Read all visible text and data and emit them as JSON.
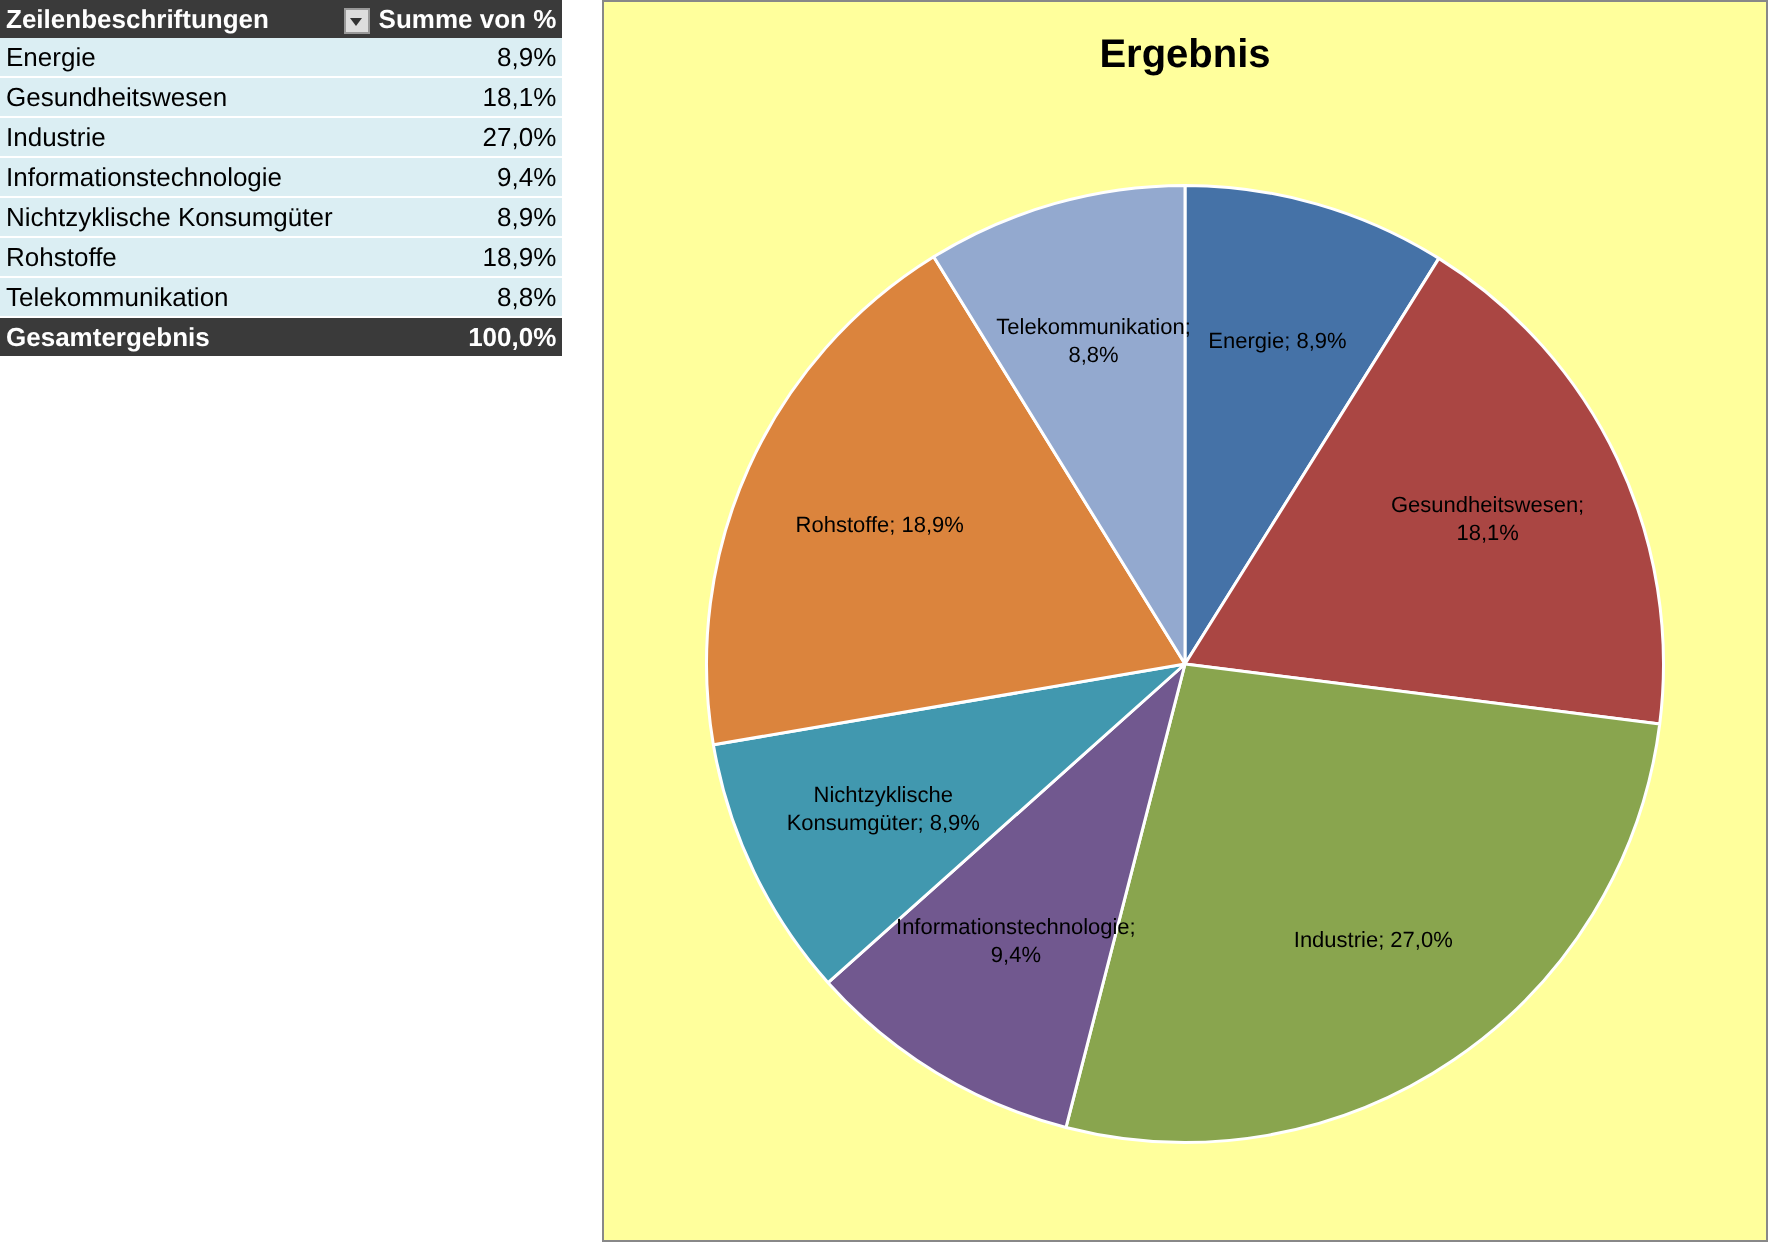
{
  "chart_data": [
    {
      "type": "other",
      "annotations": [
        "Zeilenbeschriftungen",
        "Summe von %",
        "Energie",
        "8,9%",
        "Gesundheitswesen",
        "18,1%",
        "Industrie",
        "27,0%",
        "Informationstechnologie",
        "9,4%",
        "Nichtzyklische Konsumgüter",
        "8,9%",
        "Rohstoffe",
        "18,9%",
        "Telekommunikation",
        "8,8%",
        "Gesamtergebnis",
        "100,0%"
      ]
    },
    {
      "type": "pie",
      "title": "Ergebnis",
      "categories": [
        "Energie",
        "Gesundheitswesen",
        "Industrie",
        "Informationstechnologie",
        "Nichtzyklische Konsumgüter",
        "Rohstoffe",
        "Telekommunikation"
      ],
      "values": [
        8.9,
        18.1,
        27.0,
        9.4,
        8.9,
        18.9,
        8.8
      ],
      "value_labels": [
        "; 8,9%",
        "; 18,1%",
        "; 27,0%",
        "; 9,4%",
        "; 8,9%",
        "; 18,9%",
        "; 8,8%"
      ],
      "colors": [
        "#4572a7",
        "#aa4643",
        "#89a54e",
        "#71588f",
        "#4198af",
        "#db843d",
        "#93a9cf"
      ],
      "legend": false
    }
  ]
}
